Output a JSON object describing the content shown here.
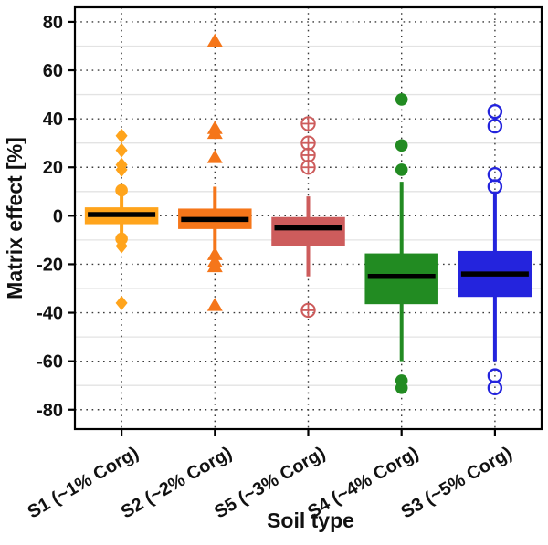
{
  "figure": {
    "xlabel": "Soil type",
    "ylabel": "Matrix effect [%]"
  },
  "colors": {
    "background": "#FFFFFF",
    "frame": "#000000",
    "median": "#000000",
    "grid_dotted": "#3A3A3A",
    "grid_minor": "#E3E3E3"
  },
  "chart_data": {
    "type": "boxplot",
    "title": "",
    "xlabel": "Soil type",
    "ylabel": "Matrix effect [%]",
    "ylim": [
      -88,
      86
    ],
    "yticks": [
      -80,
      -60,
      -40,
      -20,
      0,
      20,
      40,
      60,
      80
    ],
    "minor_gridlines": [
      -70,
      -50,
      -30,
      -10,
      10,
      30,
      50,
      70
    ],
    "grid": {
      "horizontal_major": "dotted",
      "horizontal_minor": "light-solid",
      "vertical": "dotted-at-category-centers"
    },
    "legend_position": "none",
    "categories": [
      "S1 (~1% Corg)",
      "S2 (~2% Corg)",
      "S5 (~3% Corg)",
      "S4 (~4% Corg)",
      "S3 (~5% Corg)"
    ],
    "series": [
      {
        "label": "S1 (~1% Corg)",
        "color": "#FFA41C",
        "outlier_symbol": "filled-diamond",
        "whisker_end_symbol": "filled-circle",
        "q1": -3,
        "median": 0.5,
        "q3": 3,
        "whisker_low": -9.5,
        "whisker_high": 10.5,
        "outliers_high": [
          33,
          27,
          21,
          19
        ],
        "outliers_low": [
          -12.5,
          -36
        ]
      },
      {
        "label": "S2 (~2% Corg)",
        "color": "#F5761A",
        "outlier_symbol": "filled-triangle",
        "whisker_end_symbol": "none",
        "q1": -5,
        "median": -1.5,
        "q3": 2.5,
        "whisker_low": -14,
        "whisker_high": 12,
        "outliers_high": [
          72,
          36,
          34,
          24
        ],
        "outliers_low": [
          -16,
          -19,
          -21,
          -37
        ]
      },
      {
        "label": "S5 (~3% Corg)",
        "color": "#CD5C5C",
        "outlier_symbol": "circle-plus",
        "whisker_end_symbol": "none",
        "q1": -12,
        "median": -5,
        "q3": -1,
        "whisker_low": -25,
        "whisker_high": 8,
        "outliers_high": [
          38,
          30,
          25,
          20
        ],
        "outliers_low": [
          -39
        ]
      },
      {
        "label": "S4 (~4% Corg)",
        "color": "#228B22",
        "outlier_symbol": "filled-circle",
        "whisker_end_symbol": "none",
        "q1": -36,
        "median": -25,
        "q3": -16,
        "whisker_low": -60,
        "whisker_high": 14,
        "outliers_high": [
          48,
          29,
          19
        ],
        "outliers_low": [
          -68,
          -71
        ]
      },
      {
        "label": "S3 (~5% Corg)",
        "color": "#2424DD",
        "outlier_symbol": "open-circle",
        "whisker_end_symbol": "none",
        "q1": -33,
        "median": -24,
        "q3": -15,
        "whisker_low": -60,
        "whisker_high": 10,
        "outliers_high": [
          43,
          37,
          17,
          12
        ],
        "outliers_low": [
          -66,
          -71
        ]
      }
    ]
  }
}
